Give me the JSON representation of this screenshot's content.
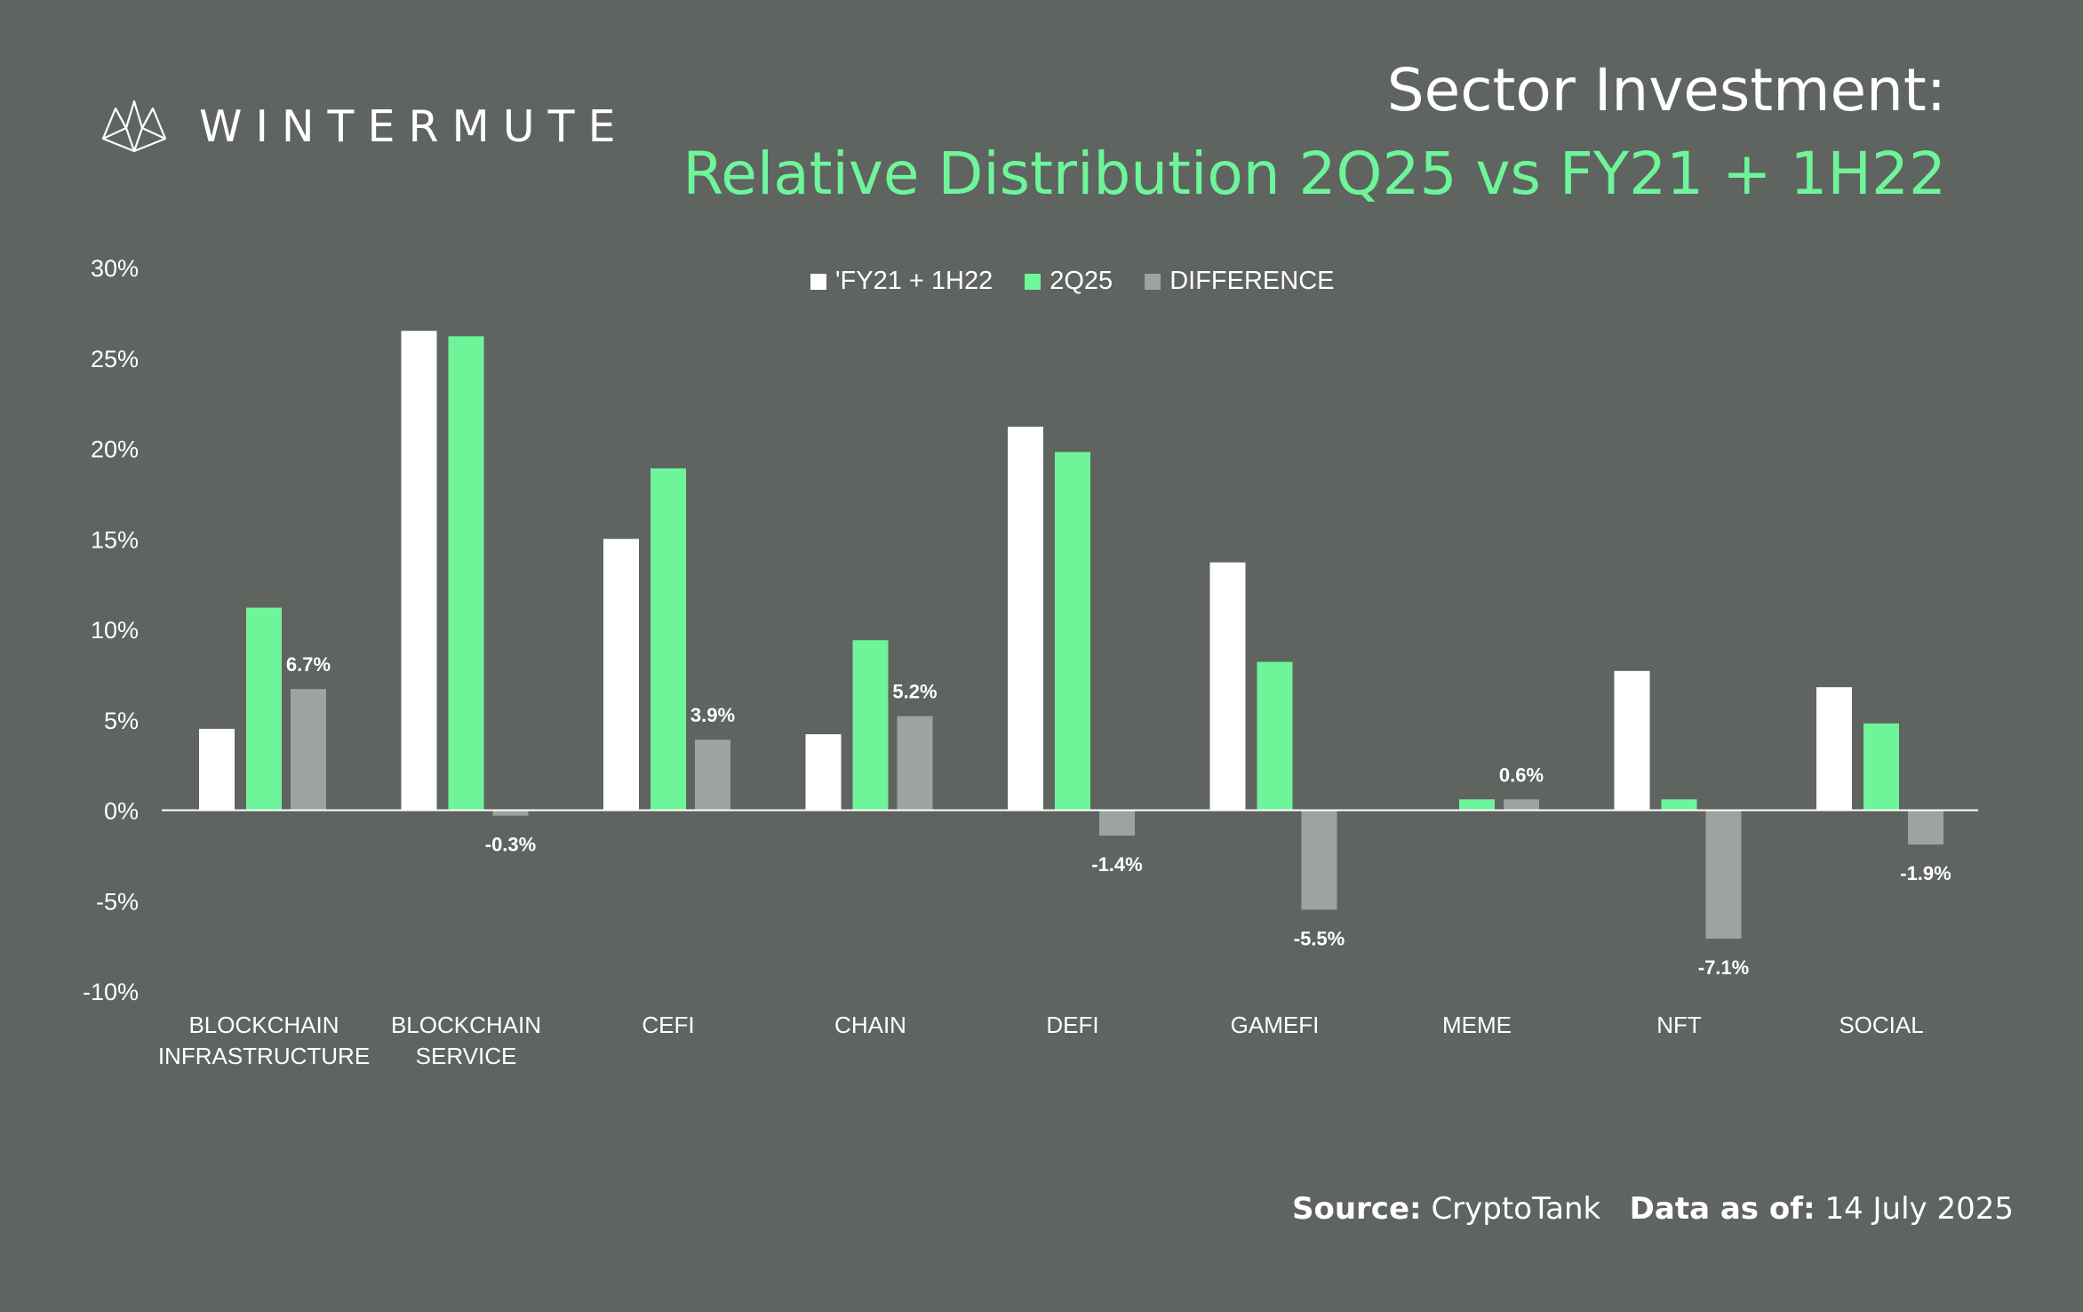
{
  "brand": {
    "name": "WINTERMUTE",
    "logo_icon": "wintermute-logo-icon"
  },
  "title": {
    "line1": "Sector Investment:",
    "line2": "Relative Distribution 2Q25 vs FY21 + 1H22"
  },
  "footer": {
    "source_label": "Source:",
    "source_value": "CryptoTank",
    "date_label": "Data as of:",
    "date_value": "14 July 2025"
  },
  "colors": {
    "background": "#5f6460",
    "fy21_1h22": "#ffffff",
    "q2_25": "#6ef59a",
    "difference": "#9ea39f",
    "title_accent": "#6ef59a"
  },
  "chart_data": {
    "type": "bar",
    "title": "Sector Investment: Relative Distribution 2Q25 vs FY21 + 1H22",
    "xlabel": "",
    "ylabel": "",
    "ylim": [
      -10,
      30
    ],
    "yticks": [
      "30%",
      "25%",
      "20%",
      "15%",
      "10%",
      "5%",
      "0%",
      "-5%",
      "-10%"
    ],
    "legend_position": "top-center",
    "grid": false,
    "categories": [
      [
        "BLOCKCHAIN",
        "INFRASTRUCTURE"
      ],
      [
        "BLOCKCHAIN",
        "SERVICE"
      ],
      [
        "CEFI"
      ],
      [
        "CHAIN"
      ],
      [
        "DEFI"
      ],
      [
        "GAMEFI"
      ],
      [
        "MEME"
      ],
      [
        "NFT"
      ],
      [
        "SOCIAL"
      ]
    ],
    "series": [
      {
        "name": "'FY21 + 1H22",
        "values": [
          4.5,
          26.5,
          15.0,
          4.2,
          21.2,
          13.7,
          0.0,
          7.7,
          6.8
        ]
      },
      {
        "name": "2Q25",
        "values": [
          11.2,
          26.2,
          18.9,
          9.4,
          19.8,
          8.2,
          0.6,
          0.6,
          4.8
        ]
      },
      {
        "name": "DIFFERENCE",
        "values": [
          6.7,
          -0.3,
          3.9,
          5.2,
          -1.4,
          -5.5,
          0.6,
          -7.1,
          -1.9
        ]
      }
    ],
    "difference_labels": [
      "6.7%",
      "-0.3%",
      "3.9%",
      "5.2%",
      "-1.4%",
      "-5.5%",
      "0.6%",
      "-7.1%",
      "-1.9%"
    ]
  }
}
